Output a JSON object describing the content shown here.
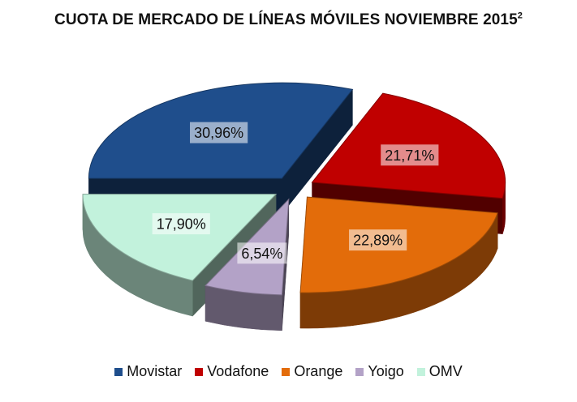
{
  "chart_data": {
    "type": "pie",
    "title": "CUOTA DE MERCADO DE LÍNEAS MÓVILES NOVIEMBRE 2015",
    "title_superscript": "2",
    "categories": [
      "Movistar",
      "Vodafone",
      "Orange",
      "Yoigo",
      "OMV"
    ],
    "values": [
      30.96,
      21.71,
      22.89,
      6.54,
      17.9
    ],
    "labels": [
      "30,96%",
      "21,71%",
      "22,89%",
      "6,54%",
      "17,90%"
    ],
    "colors": [
      "#1F4E8C",
      "#C00000",
      "#E36C0A",
      "#B3A2C7",
      "#C2F2DC"
    ],
    "legend_position": "bottom",
    "style": "3d-exploded"
  }
}
